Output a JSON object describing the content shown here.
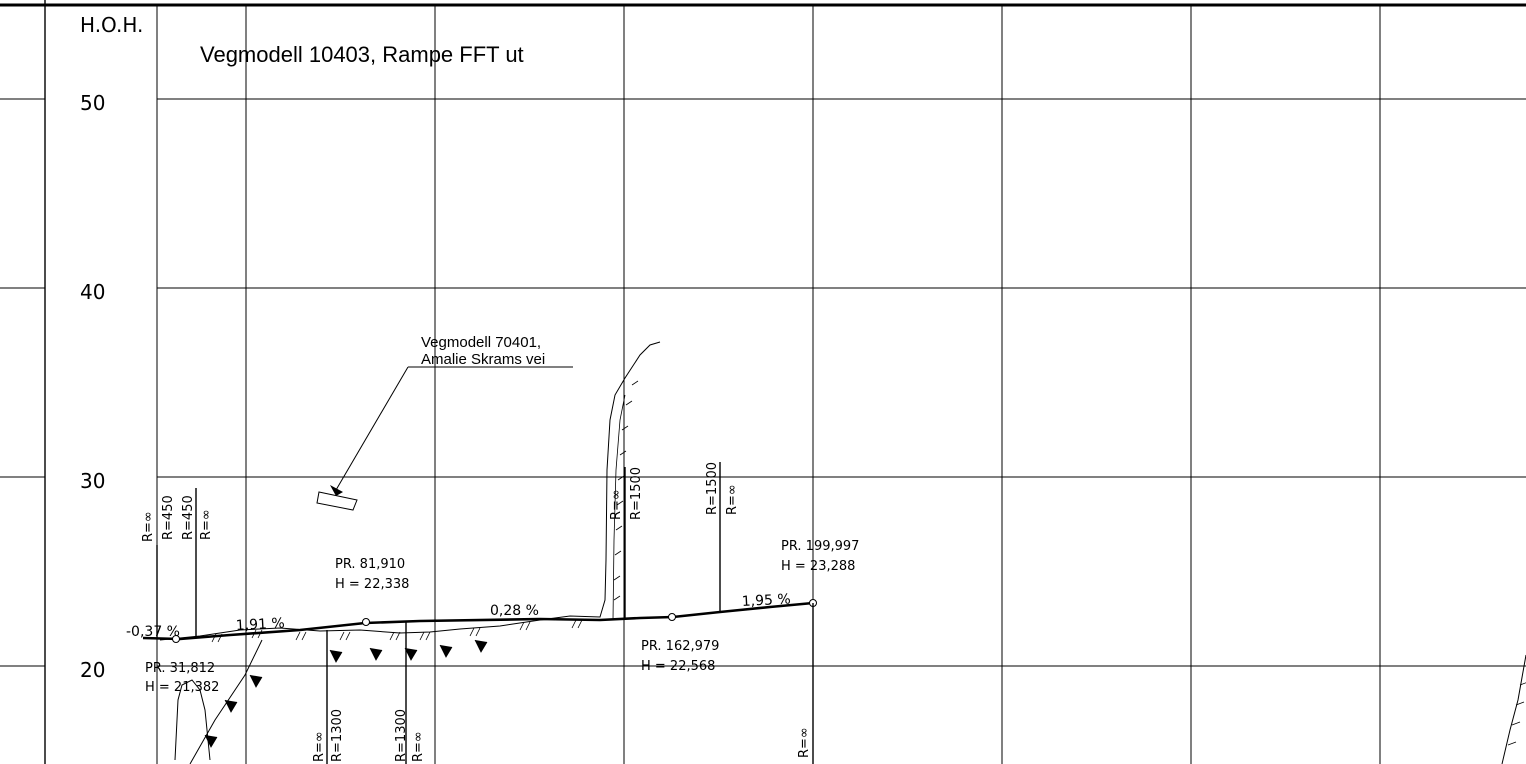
{
  "title": "Vegmodell 10403, Rampe FFT ut",
  "y_axis": {
    "label": "H.O.H.",
    "ticks": [
      "50",
      "40",
      "30",
      "20"
    ]
  },
  "reference_note": {
    "line1": "Vegmodell 70401,",
    "line2": "Amalie Skrams vei"
  },
  "grades": {
    "g1": "-0,37 %",
    "g2": "1,91 %",
    "g3": "0,28 %",
    "g4": "1,95 %"
  },
  "points": {
    "p1": {
      "pr": "PR. 31,812",
      "h": "H = 21,382"
    },
    "p2": {
      "pr": "PR. 81,910",
      "h": "H = 22,338"
    },
    "p3": {
      "pr": "PR. 162,979",
      "h": "H = 22,568"
    },
    "p4": {
      "pr": "PR. 199,997",
      "h": "H = 23,288"
    }
  },
  "radii": {
    "r1": "R=∞",
    "r2": "R=450",
    "r3": "R=450",
    "r4": "R=∞",
    "r5": "R=∞",
    "r6": "R=1500",
    "r7": "R=1500",
    "r8": "R=∞",
    "r9": "R=∞",
    "r10": "R=1300",
    "r11": "R=1300",
    "r12": "R=∞",
    "r13": "R=∞"
  }
}
